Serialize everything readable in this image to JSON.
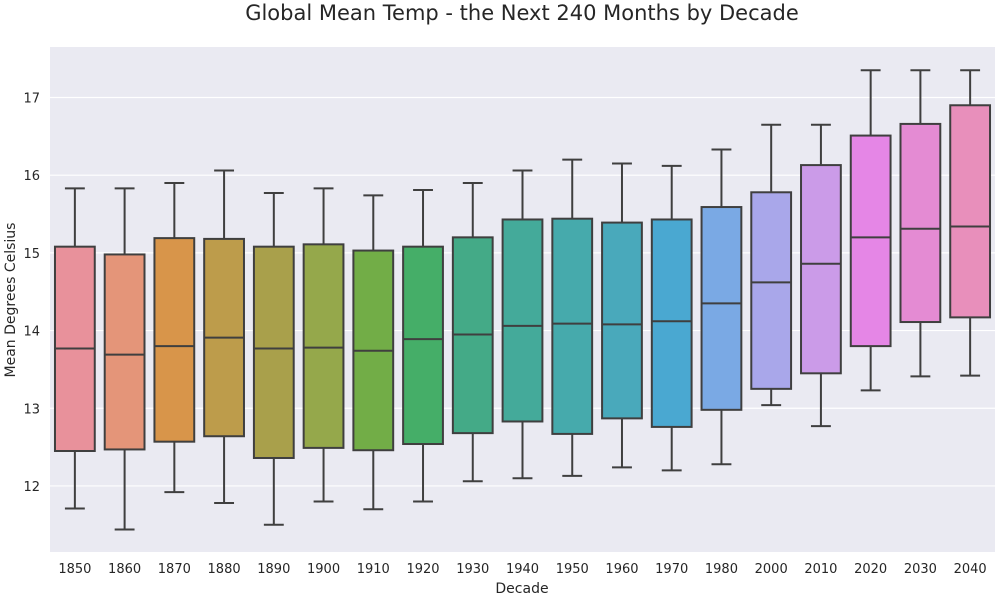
{
  "chart_data": {
    "type": "box",
    "title": "Global Mean Temp - the Next 240 Months by Decade",
    "xlabel": "Decade",
    "ylabel": "Mean Degrees Celsius",
    "ylim": [
      11.15,
      17.65
    ],
    "yticks": [
      "12",
      "13",
      "14",
      "15",
      "16",
      "17"
    ],
    "grid": true,
    "categories": [
      "1850",
      "1860",
      "1870",
      "1880",
      "1890",
      "1900",
      "1910",
      "1920",
      "1930",
      "1940",
      "1950",
      "1960",
      "1970",
      "1980",
      "2000",
      "2010",
      "2020",
      "2030",
      "2040"
    ],
    "boxes": [
      {
        "whisker_low": 11.71,
        "q1": 12.45,
        "median": 13.77,
        "q3": 15.08,
        "whisker_high": 15.83
      },
      {
        "whisker_low": 11.44,
        "q1": 12.47,
        "median": 13.69,
        "q3": 14.98,
        "whisker_high": 15.83
      },
      {
        "whisker_low": 11.92,
        "q1": 12.57,
        "median": 13.8,
        "q3": 15.19,
        "whisker_high": 15.9
      },
      {
        "whisker_low": 11.78,
        "q1": 12.64,
        "median": 13.91,
        "q3": 15.18,
        "whisker_high": 16.06
      },
      {
        "whisker_low": 11.5,
        "q1": 12.36,
        "median": 13.77,
        "q3": 15.08,
        "whisker_high": 15.77
      },
      {
        "whisker_low": 11.8,
        "q1": 12.49,
        "median": 13.78,
        "q3": 15.11,
        "whisker_high": 15.83
      },
      {
        "whisker_low": 11.7,
        "q1": 12.46,
        "median": 13.74,
        "q3": 15.03,
        "whisker_high": 15.74
      },
      {
        "whisker_low": 11.8,
        "q1": 12.54,
        "median": 13.89,
        "q3": 15.08,
        "whisker_high": 15.81
      },
      {
        "whisker_low": 12.06,
        "q1": 12.68,
        "median": 13.95,
        "q3": 15.2,
        "whisker_high": 15.9
      },
      {
        "whisker_low": 12.1,
        "q1": 12.83,
        "median": 14.06,
        "q3": 15.43,
        "whisker_high": 16.06
      },
      {
        "whisker_low": 12.13,
        "q1": 12.67,
        "median": 14.09,
        "q3": 15.44,
        "whisker_high": 16.2
      },
      {
        "whisker_low": 12.24,
        "q1": 12.87,
        "median": 14.08,
        "q3": 15.39,
        "whisker_high": 16.15
      },
      {
        "whisker_low": 12.2,
        "q1": 12.76,
        "median": 14.12,
        "q3": 15.43,
        "whisker_high": 16.12
      },
      {
        "whisker_low": 12.28,
        "q1": 12.98,
        "median": 14.35,
        "q3": 15.59,
        "whisker_high": 16.33
      },
      {
        "whisker_low": 13.04,
        "q1": 13.25,
        "median": 14.62,
        "q3": 15.78,
        "whisker_high": 16.65
      },
      {
        "whisker_low": 12.77,
        "q1": 13.45,
        "median": 14.86,
        "q3": 16.13,
        "whisker_high": 16.65
      },
      {
        "whisker_low": 13.23,
        "q1": 13.8,
        "median": 15.2,
        "q3": 16.51,
        "whisker_high": 17.35
      },
      {
        "whisker_low": 13.41,
        "q1": 14.11,
        "median": 15.31,
        "q3": 16.66,
        "whisker_high": 17.35
      },
      {
        "whisker_low": 13.42,
        "q1": 14.17,
        "median": 15.34,
        "q3": 16.9,
        "whisker_high": 17.35
      }
    ],
    "colors": [
      "#e8919b",
      "#e49579",
      "#d8954a",
      "#bd9c4b",
      "#a9a04b",
      "#95a84b",
      "#72ad47",
      "#45ae68",
      "#44aa87",
      "#44aa9a",
      "#46aaac",
      "#49a9bb",
      "#4aa8d1",
      "#7aa9e4",
      "#a9a7ea",
      "#cb9be8",
      "#e586e6",
      "#e48bd3",
      "#e88fbb"
    ]
  }
}
